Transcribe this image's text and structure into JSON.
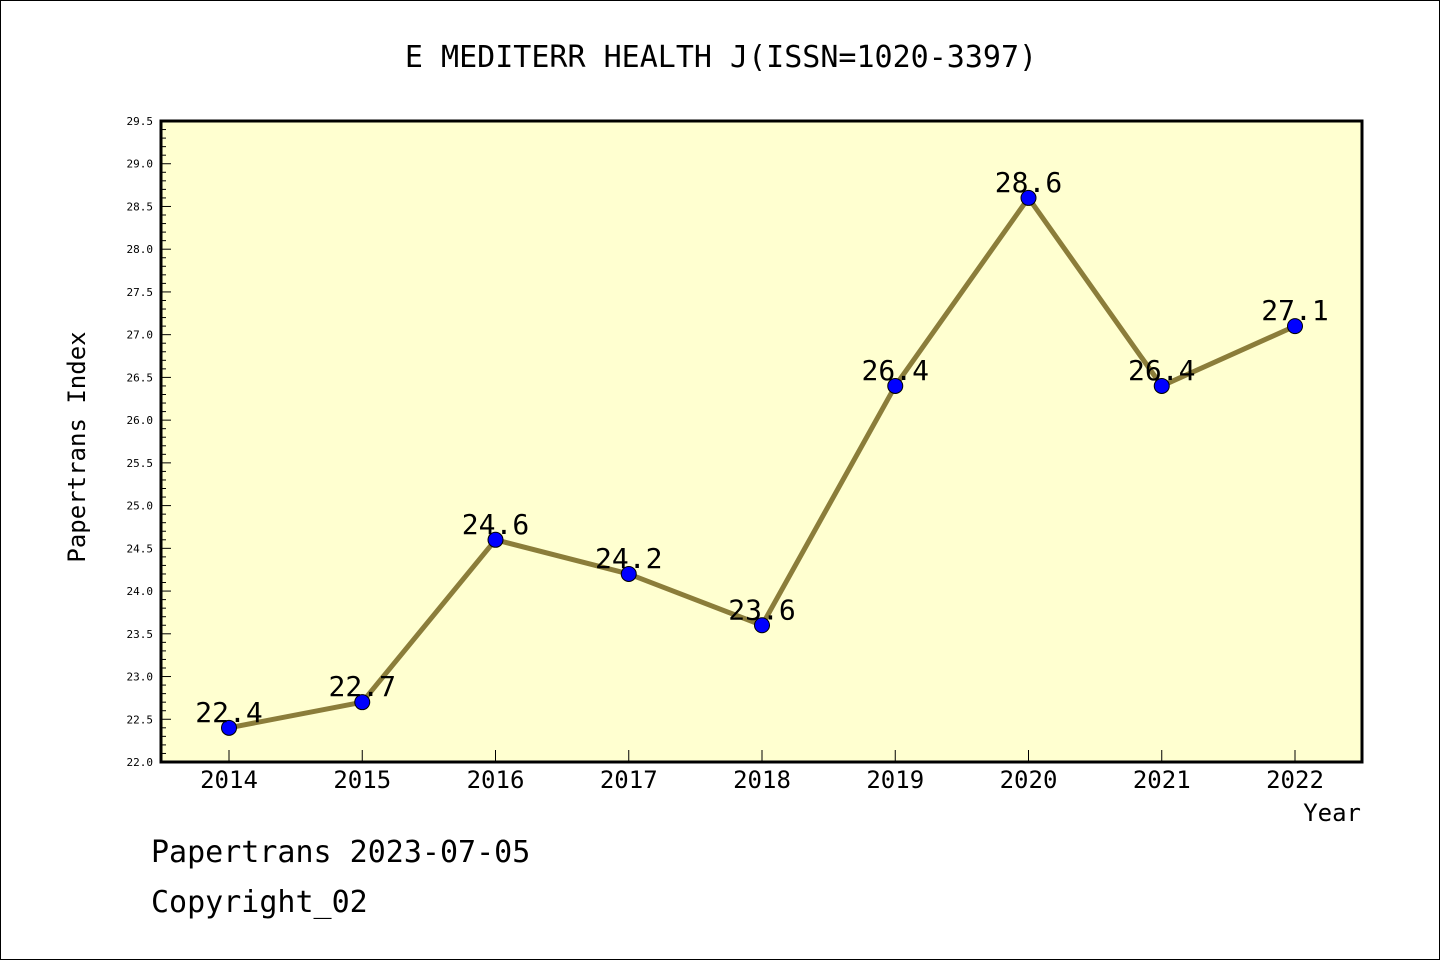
{
  "chart_data": {
    "type": "line",
    "title": "E MEDITERR HEALTH J(ISSN=1020-3397)",
    "xlabel": "Year",
    "ylabel": "Papertrans Index",
    "categories": [
      "2014",
      "2015",
      "2016",
      "2017",
      "2018",
      "2019",
      "2020",
      "2021",
      "2022"
    ],
    "series": [
      {
        "values": [
          22.4,
          22.7,
          24.6,
          24.2,
          23.6,
          26.4,
          28.6,
          26.4,
          27.1
        ]
      }
    ],
    "data_labels": [
      "22.4",
      "22.7",
      "24.6",
      "24.2",
      "23.6",
      "26.4",
      "28.6",
      "26.4",
      "27.1"
    ],
    "ylim": [
      22.0,
      29.5
    ],
    "y_ticks": [
      "22.0",
      "22.5",
      "23.0",
      "23.5",
      "24.0",
      "24.5",
      "25.0",
      "25.5",
      "26.0",
      "26.5",
      "27.0",
      "27.5",
      "28.0",
      "28.5",
      "29.0",
      "29.5"
    ],
    "grid": false,
    "legend": "none",
    "colors": {
      "plot_background": "#ffffd0",
      "line": "#8b7d3a",
      "marker": "#0000ff"
    }
  },
  "footer": {
    "line1": "Papertrans 2023-07-05",
    "line2": "Copyright_02"
  }
}
